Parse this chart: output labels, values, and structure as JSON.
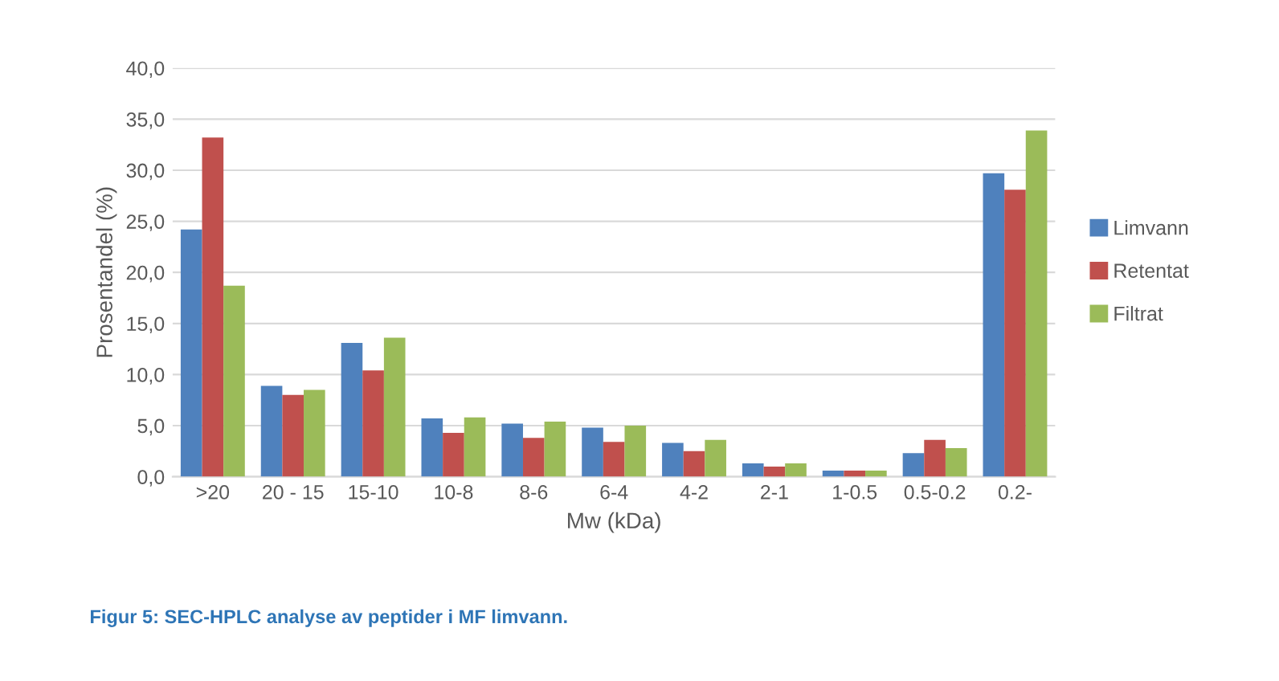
{
  "chart_data": {
    "type": "bar",
    "xlabel": "Mw (kDa)",
    "ylabel": "Prosentandel (%)",
    "categories": [
      ">20",
      "20 - 15",
      "15-10",
      "10-8",
      "8-6",
      "6-4",
      "4-2",
      "2-1",
      "1-0.5",
      "0.5-0.2",
      "0.2-"
    ],
    "series": [
      {
        "name": "Limvann",
        "color": "#4f81bd",
        "values": [
          24.2,
          8.9,
          13.1,
          5.7,
          5.2,
          4.8,
          3.3,
          1.3,
          0.6,
          2.3,
          29.7
        ]
      },
      {
        "name": "Retentat",
        "color": "#c0504d",
        "values": [
          33.2,
          8.0,
          10.4,
          4.3,
          3.8,
          3.4,
          2.5,
          1.0,
          0.6,
          3.6,
          28.1
        ]
      },
      {
        "name": "Filtrat",
        "color": "#9bbb59",
        "values": [
          18.7,
          8.5,
          13.6,
          5.8,
          5.4,
          5.0,
          3.6,
          1.3,
          0.6,
          2.8,
          33.9
        ]
      }
    ],
    "ylim": [
      0,
      40
    ],
    "yticks": [
      {
        "value": 0,
        "label": "0,0"
      },
      {
        "value": 5,
        "label": "5,0"
      },
      {
        "value": 10,
        "label": "10,0"
      },
      {
        "value": 15,
        "label": "15,0"
      },
      {
        "value": 20,
        "label": "20,0"
      },
      {
        "value": 25,
        "label": "25,0"
      },
      {
        "value": 30,
        "label": "30,0"
      },
      {
        "value": 35,
        "label": "35,0"
      },
      {
        "value": 40,
        "label": "40,0"
      }
    ],
    "grid": "y",
    "legend": "right",
    "annotations": [
      "Figur 5: SEC-HPLC analyse av peptider i MF limvann."
    ]
  }
}
